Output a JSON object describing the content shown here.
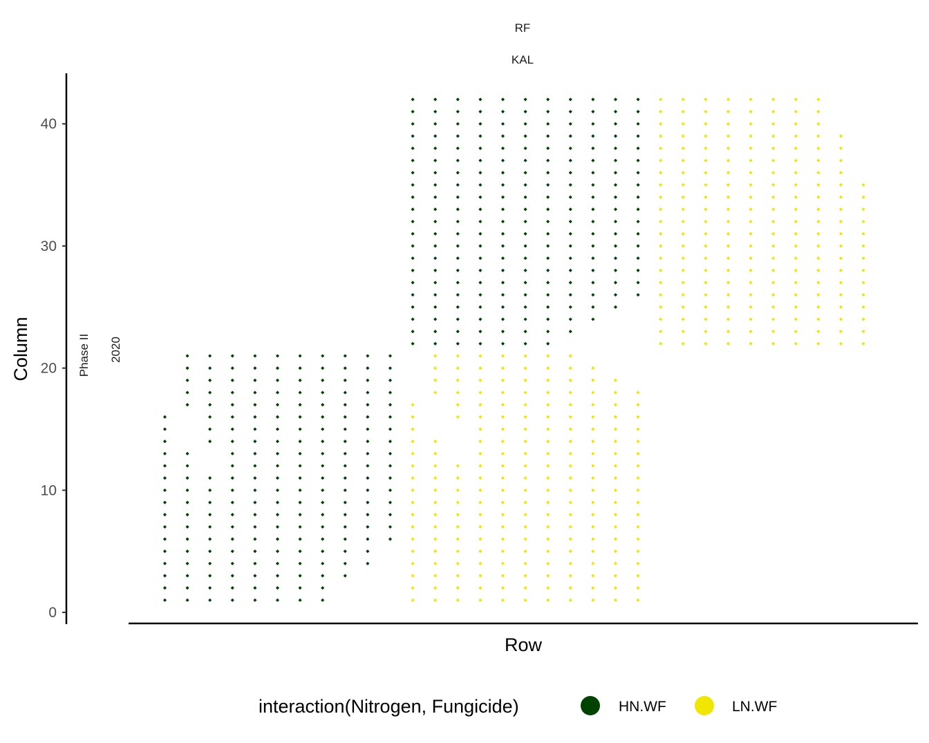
{
  "chart_data": {
    "type": "scatter",
    "facet_strips": {
      "top": [
        "RF",
        "KAL"
      ],
      "left": [
        "Phase II",
        "2020"
      ]
    },
    "xlabel": "Row",
    "ylabel": "Column",
    "ylim": [
      0,
      42
    ],
    "yticks": [
      0,
      10,
      20,
      30,
      40
    ],
    "x_ticks_shown": false,
    "grid": false,
    "legend": {
      "title": "interaction(Nitrogen, Fungicide)",
      "position": "bottom",
      "entries": [
        {
          "name": "HN.WF",
          "color": "#004200"
        },
        {
          "name": "LN.WF",
          "color": "#f0e600"
        }
      ]
    },
    "columns": [
      {
        "row": 1,
        "series": "HN.WF",
        "ranges": [
          [
            1,
            16
          ]
        ]
      },
      {
        "row": 2,
        "series": "HN.WF",
        "ranges": [
          [
            1,
            13
          ],
          [
            17,
            21
          ]
        ]
      },
      {
        "row": 3,
        "series": "HN.WF",
        "ranges": [
          [
            1,
            11
          ],
          [
            14,
            21
          ]
        ]
      },
      {
        "row": 4,
        "series": "HN.WF",
        "ranges": [
          [
            1,
            21
          ]
        ]
      },
      {
        "row": 5,
        "series": "HN.WF",
        "ranges": [
          [
            1,
            21
          ]
        ]
      },
      {
        "row": 6,
        "series": "HN.WF",
        "ranges": [
          [
            1,
            21
          ]
        ]
      },
      {
        "row": 7,
        "series": "HN.WF",
        "ranges": [
          [
            1,
            21
          ]
        ]
      },
      {
        "row": 8,
        "series": "HN.WF",
        "ranges": [
          [
            1,
            21
          ]
        ]
      },
      {
        "row": 9,
        "series": "HN.WF",
        "ranges": [
          [
            3,
            21
          ]
        ]
      },
      {
        "row": 10,
        "series": "HN.WF",
        "ranges": [
          [
            4,
            21
          ]
        ]
      },
      {
        "row": 11,
        "series": "HN.WF",
        "ranges": [
          [
            6,
            21
          ]
        ]
      },
      {
        "row": 12,
        "series": "LN.WF",
        "ranges": [
          [
            1,
            17
          ]
        ]
      },
      {
        "row": 12,
        "series": "HN.WF",
        "ranges": [
          [
            22,
            42
          ]
        ]
      },
      {
        "row": 13,
        "series": "LN.WF",
        "ranges": [
          [
            1,
            14
          ],
          [
            18,
            21
          ]
        ]
      },
      {
        "row": 13,
        "series": "HN.WF",
        "ranges": [
          [
            22,
            42
          ]
        ]
      },
      {
        "row": 14,
        "series": "LN.WF",
        "ranges": [
          [
            1,
            12
          ],
          [
            16,
            21
          ]
        ]
      },
      {
        "row": 14,
        "series": "HN.WF",
        "ranges": [
          [
            22,
            42
          ]
        ]
      },
      {
        "row": 15,
        "series": "LN.WF",
        "ranges": [
          [
            1,
            21
          ]
        ]
      },
      {
        "row": 15,
        "series": "HN.WF",
        "ranges": [
          [
            22,
            42
          ]
        ]
      },
      {
        "row": 16,
        "series": "LN.WF",
        "ranges": [
          [
            1,
            21
          ]
        ]
      },
      {
        "row": 16,
        "series": "HN.WF",
        "ranges": [
          [
            22,
            42
          ]
        ]
      },
      {
        "row": 17,
        "series": "LN.WF",
        "ranges": [
          [
            1,
            21
          ]
        ]
      },
      {
        "row": 17,
        "series": "HN.WF",
        "ranges": [
          [
            22,
            42
          ]
        ]
      },
      {
        "row": 18,
        "series": "LN.WF",
        "ranges": [
          [
            1,
            21
          ]
        ]
      },
      {
        "row": 18,
        "series": "HN.WF",
        "ranges": [
          [
            22,
            42
          ]
        ]
      },
      {
        "row": 19,
        "series": "LN.WF",
        "ranges": [
          [
            1,
            21
          ]
        ]
      },
      {
        "row": 19,
        "series": "HN.WF",
        "ranges": [
          [
            23,
            42
          ]
        ]
      },
      {
        "row": 20,
        "series": "LN.WF",
        "ranges": [
          [
            1,
            20
          ]
        ]
      },
      {
        "row": 20,
        "series": "HN.WF",
        "ranges": [
          [
            24,
            42
          ]
        ]
      },
      {
        "row": 21,
        "series": "LN.WF",
        "ranges": [
          [
            1,
            19
          ]
        ]
      },
      {
        "row": 21,
        "series": "HN.WF",
        "ranges": [
          [
            25,
            42
          ]
        ]
      },
      {
        "row": 22,
        "series": "LN.WF",
        "ranges": [
          [
            1,
            18
          ]
        ]
      },
      {
        "row": 22,
        "series": "HN.WF",
        "ranges": [
          [
            26,
            42
          ]
        ]
      },
      {
        "row": 23,
        "series": "LN.WF",
        "ranges": [
          [
            22,
            42
          ]
        ]
      },
      {
        "row": 24,
        "series": "LN.WF",
        "ranges": [
          [
            22,
            42
          ]
        ]
      },
      {
        "row": 25,
        "series": "LN.WF",
        "ranges": [
          [
            22,
            42
          ]
        ]
      },
      {
        "row": 26,
        "series": "LN.WF",
        "ranges": [
          [
            22,
            42
          ]
        ]
      },
      {
        "row": 27,
        "series": "LN.WF",
        "ranges": [
          [
            22,
            42
          ]
        ]
      },
      {
        "row": 28,
        "series": "LN.WF",
        "ranges": [
          [
            22,
            42
          ]
        ]
      },
      {
        "row": 29,
        "series": "LN.WF",
        "ranges": [
          [
            22,
            42
          ]
        ]
      },
      {
        "row": 30,
        "series": "LN.WF",
        "ranges": [
          [
            22,
            42
          ]
        ]
      },
      {
        "row": 31,
        "series": "LN.WF",
        "ranges": [
          [
            22,
            39
          ]
        ]
      },
      {
        "row": 32,
        "series": "LN.WF",
        "ranges": [
          [
            22,
            35
          ]
        ]
      }
    ]
  }
}
